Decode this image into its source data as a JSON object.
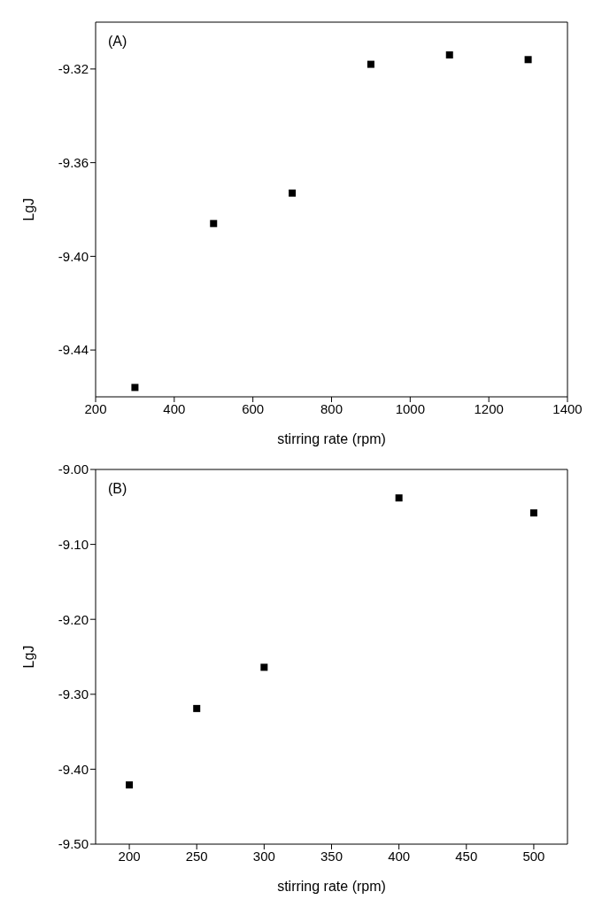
{
  "chart_data": [
    {
      "type": "scatter",
      "annotations": [
        "(A)"
      ],
      "xlabel": "stirring rate (rpm)",
      "ylabel": "LgJ",
      "x": [
        300,
        500,
        700,
        900,
        1100,
        1300
      ],
      "series": [
        {
          "color": "#000000",
          "values": [
            -9.456,
            -9.386,
            -9.373,
            -9.318,
            -9.314,
            -9.316
          ]
        }
      ],
      "xlim": [
        200,
        1400
      ],
      "xticks": [
        200,
        400,
        600,
        800,
        1000,
        1200,
        1400
      ],
      "ylim": [
        -9.46,
        -9.3
      ],
      "yticks": [
        {
          "value": -9.32,
          "label": "-9.32"
        },
        {
          "value": -9.36,
          "label": "-9.36"
        },
        {
          "value": -9.4,
          "label": "-9.40"
        },
        {
          "value": -9.44,
          "label": "-9.44"
        }
      ],
      "marker": "square",
      "grid": false,
      "legend": false
    },
    {
      "type": "scatter",
      "annotations": [
        "(B)"
      ],
      "xlabel": "stirring rate (rpm)",
      "ylabel": "LgJ",
      "x": [
        200,
        250,
        300,
        400,
        500
      ],
      "series": [
        {
          "color": "#000000",
          "values": [
            -9.421,
            -9.319,
            -9.264,
            -9.038,
            -9.058
          ]
        }
      ],
      "xlim": [
        175,
        525
      ],
      "xticks": [
        200,
        250,
        300,
        350,
        400,
        450,
        500
      ],
      "ylim": [
        -9.5,
        -9.0
      ],
      "yticks": [
        {
          "value": -9.0,
          "label": "-9.00"
        },
        {
          "value": -9.1,
          "label": "-9.10"
        },
        {
          "value": -9.2,
          "label": "-9.20"
        },
        {
          "value": -9.3,
          "label": "-9.30"
        },
        {
          "value": -9.4,
          "label": "-9.40"
        },
        {
          "value": -9.5,
          "label": "-9.50"
        }
      ],
      "marker": "square",
      "grid": false,
      "legend": false
    }
  ]
}
